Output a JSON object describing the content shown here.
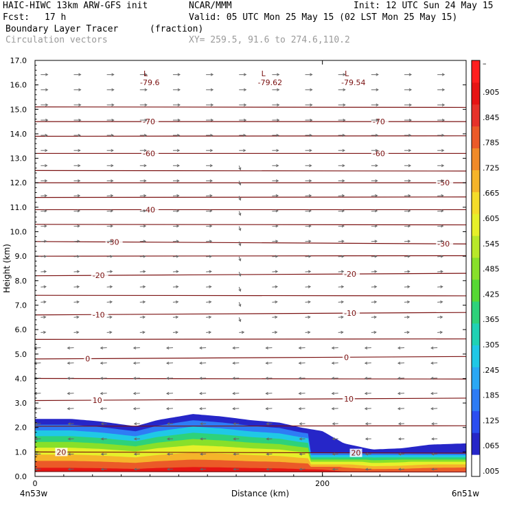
{
  "header": {
    "model": "HAIC-HIWC 13km ARW-GFS init",
    "org": "NCAR/MMM",
    "init": "Init: 12 UTC Sun 24 May 15",
    "fcst_label": "Fcst:",
    "fcst_value": "17 h",
    "valid": "Valid: 05 UTC Mon 25 May 15 (02 LST Mon 25 May 15)",
    "field": "Boundary Layer Tracer",
    "field_units": "(fraction)",
    "vectors": "Circulation vectors",
    "xy": "XY= 259.5, 91.6 to 274.6,110.2"
  },
  "chart_data": {
    "type": "heatmap",
    "xlabel": "Distance (km)",
    "ylabel": "Height (km)",
    "xlim": [
      0,
      300
    ],
    "ylim": [
      0,
      17
    ],
    "x_ticks": [
      0,
      200
    ],
    "x_tick_labels": [
      "0",
      "200"
    ],
    "x_end_labels": [
      "4n53w",
      "6n51w"
    ],
    "y_ticks": [
      0,
      1,
      2,
      3,
      4,
      5,
      6,
      7,
      8,
      9,
      10,
      11,
      12,
      13,
      14,
      15,
      16,
      17
    ],
    "y_tick_labels": [
      "0.0",
      "1.0",
      "2.0",
      "3.0",
      "4.0",
      "5.0",
      "6.0",
      "7.0",
      "8.0",
      "9.0",
      "10.0",
      "11.0",
      "12.0",
      "13.0",
      "14.0",
      "15.0",
      "16.0",
      "17.0"
    ],
    "colorbar": {
      "colors": [
        "#ffffff",
        "#2626c8",
        "#2b4ef0",
        "#2e7cf5",
        "#2aa8f5",
        "#20c8e6",
        "#20d2b4",
        "#2ed27a",
        "#56d834",
        "#88e02a",
        "#b8e82a",
        "#e6f02a",
        "#f5dc2a",
        "#f5b42a",
        "#f08a28",
        "#eb5a28",
        "#e6322a",
        "#e61414",
        "#ff1e1e"
      ],
      "labels": [
        ".005",
        ".065",
        ".125",
        ".185",
        ".245",
        ".305",
        ".365",
        ".425",
        ".485",
        ".545",
        ".605",
        ".665",
        ".725",
        ".785",
        ".845",
        ".905",
        "–"
      ]
    },
    "tracer_top_km": [
      [
        0,
        2.35
      ],
      [
        25,
        2.35
      ],
      [
        45,
        2.25
      ],
      [
        70,
        2.05
      ],
      [
        85,
        2.3
      ],
      [
        110,
        2.55
      ],
      [
        130,
        2.45
      ],
      [
        150,
        2.3
      ],
      [
        170,
        2.2
      ],
      [
        185,
        2.0
      ],
      [
        200,
        1.85
      ],
      [
        215,
        1.35
      ],
      [
        235,
        1.1
      ],
      [
        255,
        1.15
      ],
      [
        275,
        1.3
      ],
      [
        300,
        1.35
      ]
    ],
    "temperature_contours": [
      {
        "label": "-70",
        "heights_km": [
          [
            0,
            14.5
          ],
          [
            300,
            14.5
          ]
        ],
        "label_x": [
          75,
          235
        ]
      },
      {
        "label": "-60",
        "heights_km": [
          [
            0,
            13.2
          ],
          [
            300,
            13.2
          ]
        ],
        "label_x": [
          75,
          235
        ]
      },
      {
        "label": "-50",
        "heights_km": [
          [
            0,
            12.0
          ],
          [
            300,
            12.0
          ]
        ],
        "label_x": [
          280
        ]
      },
      {
        "label": "-40",
        "heights_km": [
          [
            0,
            10.9
          ],
          [
            300,
            10.9
          ]
        ],
        "label_x": [
          75
        ]
      },
      {
        "label": "-30",
        "heights_km": [
          [
            0,
            9.6
          ],
          [
            300,
            9.5
          ]
        ],
        "label_x": [
          50,
          280
        ]
      },
      {
        "label": "-20",
        "heights_km": [
          [
            0,
            8.2
          ],
          [
            300,
            8.3
          ]
        ],
        "label_x": [
          40,
          215
        ]
      },
      {
        "label": "-10",
        "heights_km": [
          [
            0,
            6.6
          ],
          [
            300,
            6.7
          ]
        ],
        "label_x": [
          40,
          215
        ]
      },
      {
        "label": "0",
        "heights_km": [
          [
            0,
            4.8
          ],
          [
            300,
            4.9
          ]
        ],
        "label_x": [
          35,
          215
        ]
      },
      {
        "label": "10",
        "heights_km": [
          [
            0,
            3.1
          ],
          [
            300,
            3.2
          ]
        ],
        "label_x": [
          40,
          215
        ]
      },
      {
        "label": "20",
        "heights_km": [
          [
            0,
            1.0
          ],
          [
            300,
            0.95
          ]
        ],
        "label_x": [
          15,
          220
        ]
      }
    ],
    "extra_isotherms_km": [
      15.1,
      13.9,
      12.5,
      11.4,
      10.3,
      9.0,
      7.4,
      5.6,
      4.0,
      2.05,
      0.2
    ],
    "minima": [
      {
        "marker": "L",
        "value": "-79.6",
        "x": 75,
        "y": 16.3
      },
      {
        "marker": "L",
        "value": "-79.62",
        "x": 157,
        "y": 16.3
      },
      {
        "marker": "L",
        "value": "-79.54",
        "x": 215,
        "y": 16.3
      }
    ],
    "vectors": {
      "x_spacing_km": 23,
      "upper_flow": "eastward",
      "lower_flow": "westward",
      "reversal_km": 5.8
    }
  }
}
